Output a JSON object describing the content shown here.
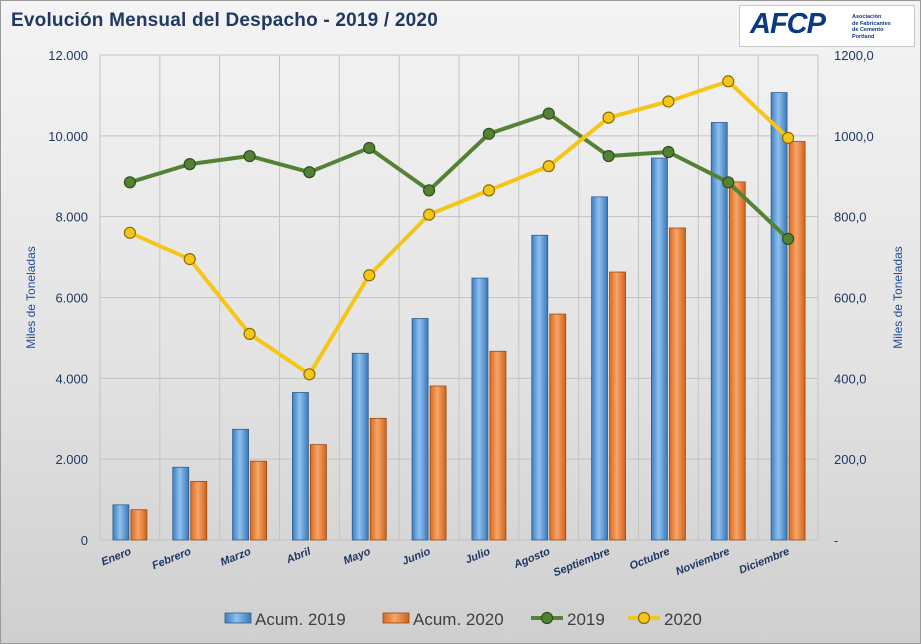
{
  "title": "Evolución Mensual del Despacho - 2019 / 2020",
  "logo": {
    "mark": "AFCP",
    "lines": [
      "Asociación",
      "de Fabricantes",
      "de Cemento",
      "Portland"
    ]
  },
  "chart_data": {
    "type": "bar",
    "title": "Evolución Mensual del Despacho - 2019 / 2020",
    "categories": [
      "Enero",
      "Febrero",
      "Marzo",
      "Abril",
      "Mayo",
      "Junio",
      "Julio",
      "Agosto",
      "Septiembre",
      "Octubre",
      "Noviembre",
      "Diciembre"
    ],
    "ylabel": "Miles de Toneladas",
    "y2label": "Miles de Toneladas",
    "ylim": [
      0,
      12000
    ],
    "y2lim": [
      0,
      1200
    ],
    "y_ticks": [
      "0",
      "2.000",
      "4.000",
      "6.000",
      "8.000",
      "10.000",
      "12.000"
    ],
    "y2_ticks": [
      "-",
      "200,0",
      "400,0",
      "600,0",
      "800,0",
      "1000,0",
      "1200,0"
    ],
    "grid": true,
    "legend_position": "bottom",
    "series": [
      {
        "name": "Acum. 2019",
        "type": "bar",
        "axis": "left",
        "color": "#5b9bd5",
        "values": [
          870,
          1800,
          2740,
          3650,
          4620,
          5480,
          6480,
          7540,
          8490,
          9450,
          10330,
          11070
        ]
      },
      {
        "name": "Acum. 2020",
        "type": "bar",
        "axis": "left",
        "color": "#ed7d31",
        "values": [
          750,
          1450,
          1950,
          2360,
          3010,
          3810,
          4670,
          5590,
          6630,
          7720,
          8860,
          9860
        ]
      },
      {
        "name": "2019",
        "type": "line",
        "axis": "right",
        "color": "#548235",
        "values": [
          885,
          930,
          950,
          910,
          970,
          865,
          1005,
          1055,
          950,
          960,
          885,
          745
        ]
      },
      {
        "name": "2020",
        "type": "line",
        "axis": "right",
        "color": "#f5c518",
        "values": [
          760,
          695,
          510,
          410,
          655,
          805,
          865,
          925,
          1045,
          1085,
          1135,
          995
        ]
      }
    ]
  }
}
